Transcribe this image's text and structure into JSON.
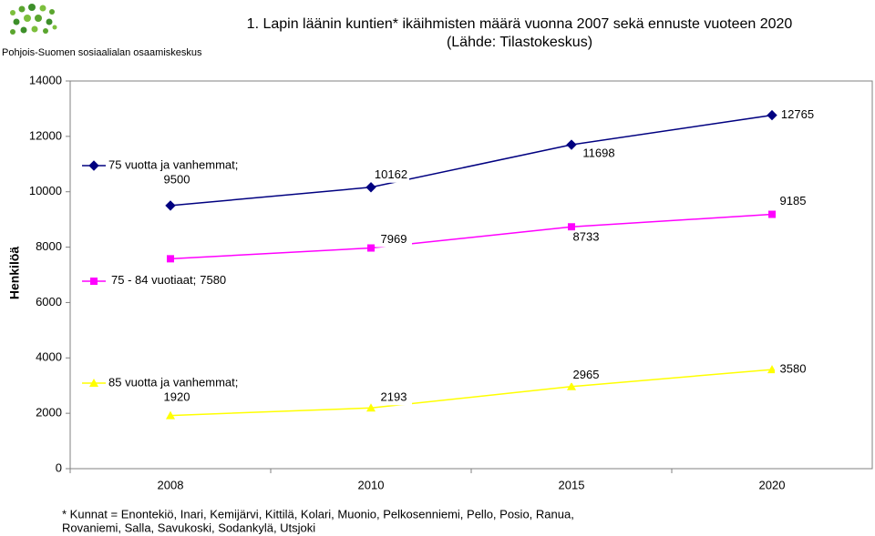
{
  "logo_text": "Pohjois-Suomen sosiaalialan osaamiskeskus",
  "chart_data": {
    "type": "line",
    "title": [
      "1. Lapin läänin kuntien* ikäihmisten määrä vuonna 2007 sekä ennuste vuoteen 2020",
      "(Lähde: Tilastokeskus)"
    ],
    "y_label": "Henkilöä",
    "categories": [
      "2008",
      "2010",
      "2015",
      "2020"
    ],
    "series": [
      {
        "name": "75 vuotta ja vanhemmat;",
        "color": "#000080",
        "marker": "diamond",
        "values": [
          9500,
          10162,
          11698,
          12765
        ]
      },
      {
        "name": "75 - 84 vuotiaat;",
        "color": "#ff00ff",
        "marker": "square",
        "values": [
          7580,
          7969,
          8733,
          9185
        ]
      },
      {
        "name": "85 vuotta ja vanhemmat;",
        "color": "#ffff00",
        "marker": "triangle",
        "values": [
          1920,
          2193,
          2965,
          3580
        ]
      }
    ],
    "ylim": [
      0,
      14000
    ],
    "yticks": [
      0,
      2000,
      4000,
      6000,
      8000,
      10000,
      12000,
      14000
    ],
    "footnote": [
      "* Kunnat = Enontekiö, Inari, Kemijärvi, Kittilä, Kolari, Muonio, Pelkosenniemi, Pello, Posio, Ranua,",
      "Rovaniemi, Salla, Savukoski, Sodankylä, Utsjoki"
    ]
  }
}
